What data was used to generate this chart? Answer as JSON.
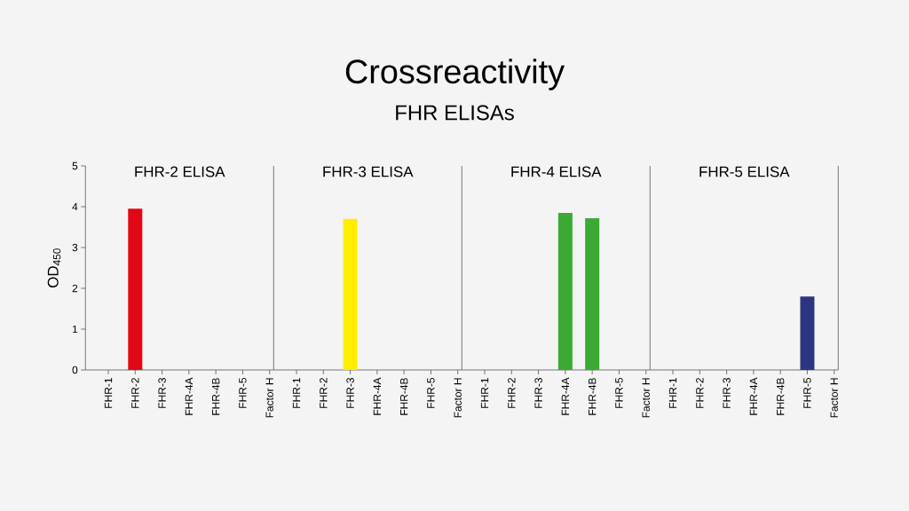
{
  "chart_data": [
    {
      "type": "bar",
      "title": "FHR-2 ELISA",
      "annotations": [
        "Crossreactivity",
        "FHR ELISAs"
      ],
      "ylabel": "OD$_{450}$",
      "categories": [
        "FHR-1",
        "FHR-2",
        "FHR-3",
        "FHR-4A",
        "FHR-4B",
        "FHR-5",
        "Factor H"
      ],
      "values": [
        0,
        3.95,
        0,
        0,
        0,
        0,
        0
      ],
      "color": "#e30613",
      "ylim": [
        0,
        5
      ],
      "yticks": [
        0,
        1,
        2,
        3,
        4,
        5
      ]
    },
    {
      "type": "bar",
      "title": "FHR-3 ELISA",
      "categories": [
        "FHR-1",
        "FHR-2",
        "FHR-3",
        "FHR-4A",
        "FHR-4B",
        "FHR-5",
        "Factor H"
      ],
      "values": [
        0,
        0,
        3.7,
        0,
        0,
        0,
        0
      ],
      "color": "#ffed00",
      "ylim": [
        0,
        5
      ],
      "yticks": [
        0,
        1,
        2,
        3,
        4,
        5
      ],
      "tick_labels": "x"
    },
    {
      "type": "bar",
      "title": "FHR-4 ELISA",
      "categories": [
        "FHR-1",
        "FHR-2",
        "FHR-3",
        "FHR-4A",
        "FHR-4B",
        "FHR-5",
        "Factor H"
      ],
      "values": [
        0,
        0,
        0,
        3.85,
        3.72,
        0,
        0
      ],
      "color": "#3aaa35",
      "ylim": [
        0,
        5
      ],
      "yticks": [
        0,
        1,
        2,
        3,
        4,
        5
      ],
      "tick_labels": "x"
    },
    {
      "type": "bar",
      "title": "FHR-5 ELISA",
      "categories": [
        "FHR-1",
        "FHR-2",
        "FHR-3",
        "FHR-4A",
        "FHR-4B",
        "FHR-5",
        "Factor H"
      ],
      "values": [
        0,
        0,
        0,
        0,
        0,
        1.8,
        0
      ],
      "color": "#2d3583",
      "ylim": [
        0,
        5
      ],
      "yticks": [
        0,
        1,
        2,
        3,
        4,
        5
      ],
      "tick_labels": "x"
    }
  ]
}
